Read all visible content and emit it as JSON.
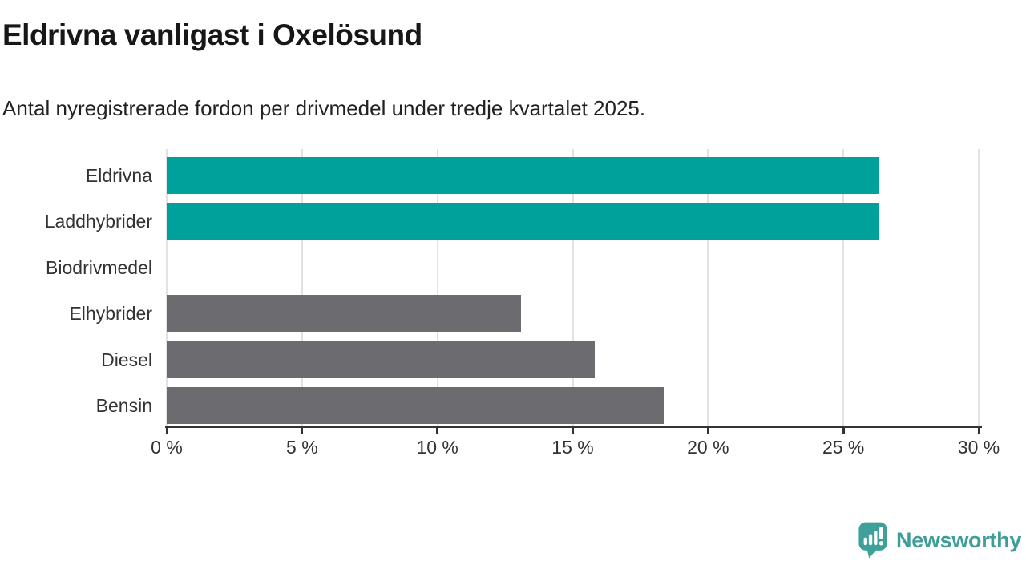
{
  "header": {
    "title": "Eldrivna vanligast i Oxelösund",
    "subtitle": "Antal nyregistrerade fordon per drivmedel under tredje kvartalet 2025."
  },
  "chart_data": {
    "type": "bar",
    "orientation": "horizontal",
    "title": "Eldrivna vanligast i Oxelösund",
    "subtitle": "Antal nyregistrerade fordon per drivmedel under tredje kvartalet 2025.",
    "categories": [
      "Eldrivna",
      "Laddhybrider",
      "Biodrivmedel",
      "Elhybrider",
      "Diesel",
      "Bensin"
    ],
    "values": [
      26.3,
      26.3,
      0,
      13.1,
      15.8,
      18.4
    ],
    "unit": "%",
    "xlim": [
      0,
      30
    ],
    "x_ticks": [
      0,
      5,
      10,
      15,
      20,
      25,
      30
    ],
    "x_tick_labels": [
      "0 %",
      "5 %",
      "10 %",
      "15 %",
      "20 %",
      "25 %",
      "30 %"
    ],
    "bar_colors": [
      "#00a19a",
      "#00a19a",
      "#6b6b70",
      "#6b6b70",
      "#6b6b70",
      "#6b6b70"
    ],
    "grid": true,
    "legend": false
  },
  "attribution": {
    "label": "Newsworthy",
    "icon": "newsworthy-logo-icon",
    "color": "#3f9e99"
  },
  "colors": {
    "accent_teal": "#00a19a",
    "bar_gray": "#6b6b70",
    "axis": "#333333",
    "gridline": "#e2e2e2",
    "logo_teal": "#3fa09a"
  }
}
